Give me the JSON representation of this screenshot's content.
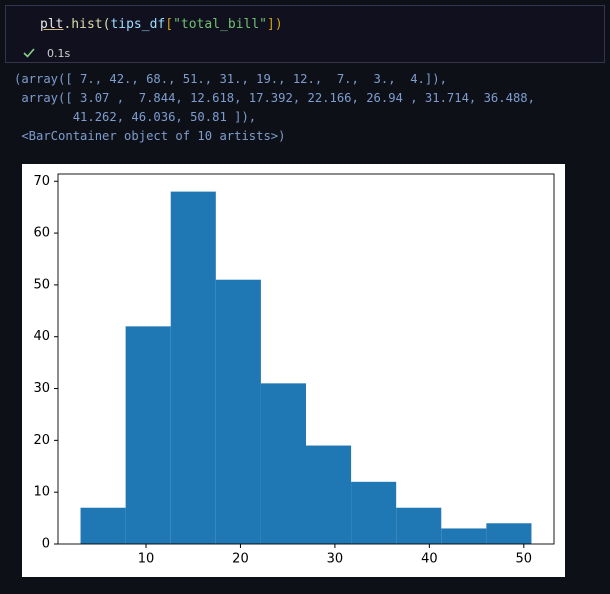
{
  "cell": {
    "code_tokens": [
      "plt",
      ".hist(",
      "tips_df",
      "[",
      "\"total_bill\"",
      "])"
    ],
    "status": "0.1s"
  },
  "output": {
    "lines": [
      "(array([ 7., 42., 68., 51., 31., 19., 12.,  7.,  3.,  4.]),",
      " array([ 3.07 ,  7.844, 12.618, 17.392, 22.166, 26.94 , 31.714, 36.488,",
      "        41.262, 46.036, 50.81 ]),",
      " <BarContainer object of 10 artists>)"
    ]
  },
  "chart_data": {
    "type": "histogram",
    "bins": [
      3.07,
      7.844,
      12.618,
      17.392,
      22.166,
      26.94,
      31.714,
      36.488,
      41.262,
      46.036,
      50.81
    ],
    "values": [
      7,
      42,
      68,
      51,
      31,
      19,
      12,
      7,
      3,
      4
    ],
    "color": "#1f77b4",
    "xlim": [
      0.683,
      53.197
    ],
    "xticks": [
      10,
      20,
      30,
      40,
      50
    ],
    "ylim": [
      0,
      71.4
    ],
    "yticks": [
      0,
      10,
      20,
      30,
      40,
      50,
      60,
      70
    ]
  }
}
